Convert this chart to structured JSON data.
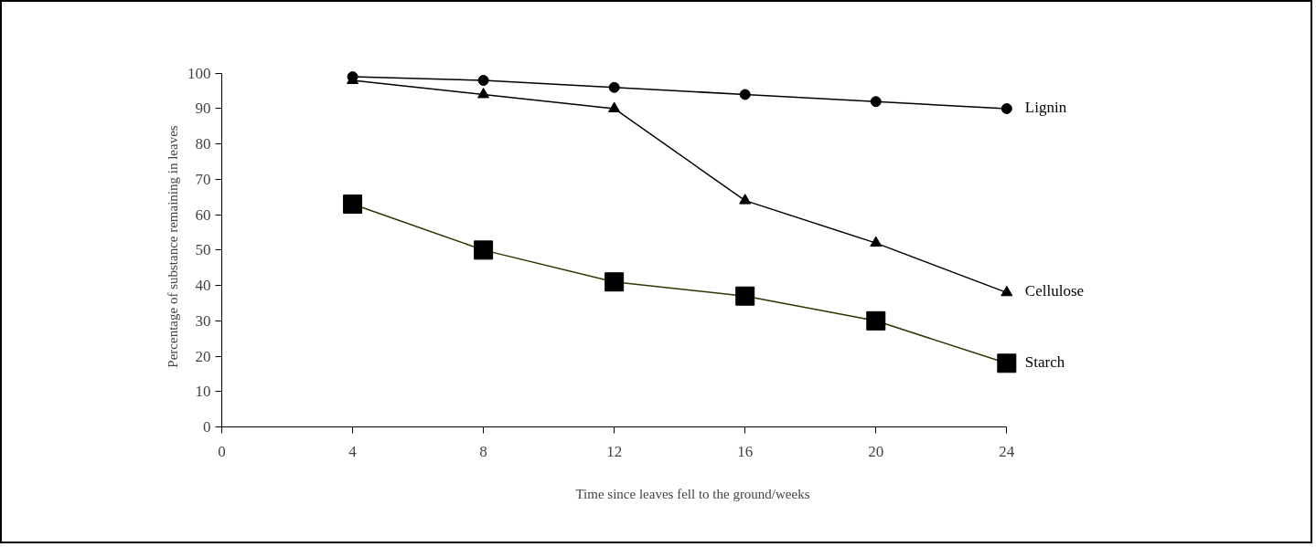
{
  "chart_data": {
    "type": "line",
    "xlabel": "Time since leaves fell to the ground/weeks",
    "ylabel": "Percentage of substance remaining in leaves",
    "x": [
      4,
      8,
      12,
      16,
      20,
      24
    ],
    "series": [
      {
        "name": "Lignin",
        "color": "#000000",
        "marker": "circle",
        "values": [
          99,
          98,
          96,
          94,
          92,
          90
        ]
      },
      {
        "name": "Cellulose",
        "color": "#000000",
        "marker": "triangle",
        "values": [
          98,
          94,
          90,
          64,
          52,
          38
        ]
      },
      {
        "name": "Starch",
        "color": "#333300",
        "marker": "square",
        "values": [
          63,
          50,
          41,
          37,
          30,
          18
        ]
      }
    ],
    "xlim": [
      0,
      24
    ],
    "ylim": [
      0,
      100
    ],
    "xticks": [
      0,
      4,
      8,
      12,
      16,
      20,
      24
    ],
    "yticks": [
      0,
      10,
      20,
      30,
      40,
      50,
      60,
      70,
      80,
      90,
      100
    ],
    "grid": false,
    "legend": false,
    "line_style": "solid"
  }
}
